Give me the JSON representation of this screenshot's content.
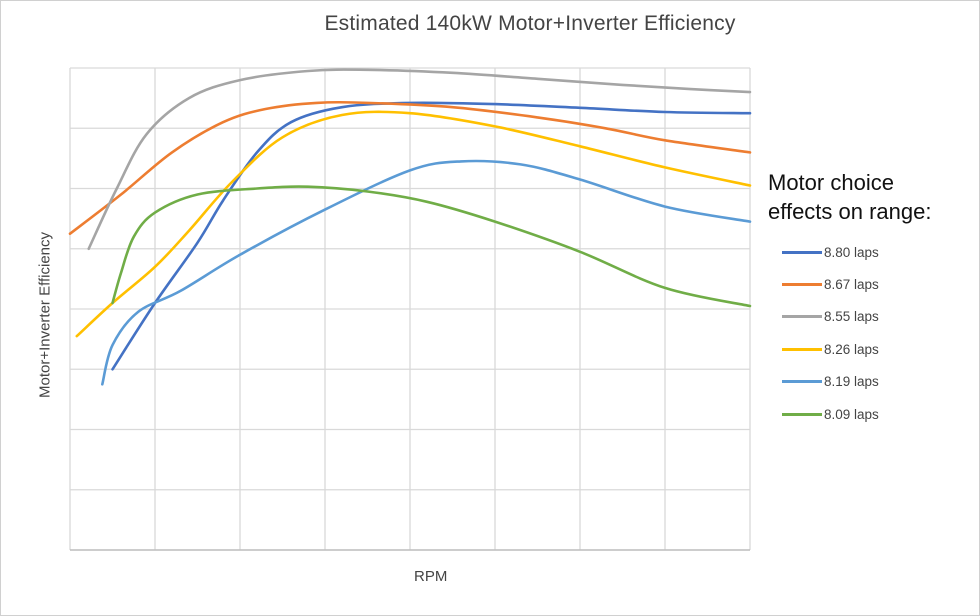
{
  "chart_data": {
    "type": "line",
    "title": "Estimated 140kW Motor+Inverter Efficiency",
    "xlabel": "RPM",
    "ylabel": "Motor+Inverter  Efficiency",
    "xlim": [
      0,
      8
    ],
    "ylim": [
      0,
      8
    ],
    "grid": true,
    "x_tick_labels_visible": false,
    "y_tick_labels_visible": false,
    "legend": {
      "placement": "right",
      "title_lines": [
        "Motor choice",
        "effects on range:"
      ]
    },
    "series": [
      {
        "name": "8.80 laps",
        "color": "#4472C4",
        "points": [
          [
            0.5,
            3.0
          ],
          [
            1.0,
            4.1
          ],
          [
            1.5,
            5.1
          ],
          [
            1.8,
            5.8
          ],
          [
            2.2,
            6.6
          ],
          [
            2.6,
            7.1
          ],
          [
            3.2,
            7.35
          ],
          [
            4.0,
            7.42
          ],
          [
            5.0,
            7.4
          ],
          [
            6.0,
            7.34
          ],
          [
            7.0,
            7.27
          ],
          [
            8.0,
            7.25
          ]
        ]
      },
      {
        "name": "8.67 laps",
        "color": "#ED7D31",
        "points": [
          [
            0.0,
            5.25
          ],
          [
            0.6,
            5.9
          ],
          [
            1.2,
            6.6
          ],
          [
            1.8,
            7.1
          ],
          [
            2.3,
            7.32
          ],
          [
            2.9,
            7.42
          ],
          [
            3.5,
            7.42
          ],
          [
            4.5,
            7.35
          ],
          [
            5.5,
            7.18
          ],
          [
            6.3,
            7.0
          ],
          [
            7.0,
            6.8
          ],
          [
            8.0,
            6.6
          ]
        ]
      },
      {
        "name": "8.55 laps",
        "color": "#A5A5A5",
        "points": [
          [
            0.22,
            5.0
          ],
          [
            0.55,
            6.0
          ],
          [
            0.9,
            6.9
          ],
          [
            1.4,
            7.5
          ],
          [
            2.0,
            7.8
          ],
          [
            2.8,
            7.95
          ],
          [
            3.5,
            7.97
          ],
          [
            4.5,
            7.92
          ],
          [
            5.5,
            7.82
          ],
          [
            6.5,
            7.72
          ],
          [
            7.3,
            7.65
          ],
          [
            8.0,
            7.6
          ]
        ]
      },
      {
        "name": "8.26 laps",
        "color": "#FFC000",
        "points": [
          [
            0.08,
            3.55
          ],
          [
            0.5,
            4.1
          ],
          [
            1.0,
            4.7
          ],
          [
            1.4,
            5.3
          ],
          [
            1.9,
            6.1
          ],
          [
            2.5,
            6.85
          ],
          [
            3.2,
            7.22
          ],
          [
            4.0,
            7.25
          ],
          [
            5.0,
            7.03
          ],
          [
            6.0,
            6.7
          ],
          [
            7.0,
            6.35
          ],
          [
            8.0,
            6.05
          ]
        ]
      },
      {
        "name": "8.19 laps",
        "color": "#5B9BD5",
        "points": [
          [
            0.38,
            2.75
          ],
          [
            0.5,
            3.4
          ],
          [
            0.8,
            3.95
          ],
          [
            1.3,
            4.3
          ],
          [
            2.0,
            4.9
          ],
          [
            3.0,
            5.65
          ],
          [
            4.0,
            6.3
          ],
          [
            4.6,
            6.45
          ],
          [
            5.3,
            6.4
          ],
          [
            6.0,
            6.15
          ],
          [
            7.0,
            5.7
          ],
          [
            8.0,
            5.45
          ]
        ]
      },
      {
        "name": "8.09 laps",
        "color": "#70AD47",
        "points": [
          [
            0.5,
            4.1
          ],
          [
            0.6,
            4.6
          ],
          [
            0.75,
            5.2
          ],
          [
            1.0,
            5.6
          ],
          [
            1.5,
            5.9
          ],
          [
            2.2,
            6.0
          ],
          [
            2.8,
            6.03
          ],
          [
            3.5,
            5.95
          ],
          [
            4.2,
            5.78
          ],
          [
            5.0,
            5.45
          ],
          [
            6.0,
            4.95
          ],
          [
            7.0,
            4.35
          ],
          [
            8.0,
            4.05
          ]
        ]
      }
    ]
  }
}
